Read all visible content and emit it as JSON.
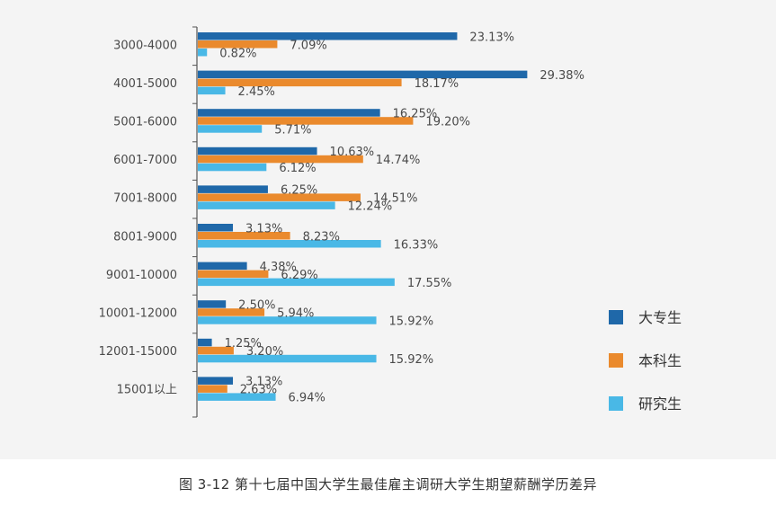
{
  "caption": "图 3-12 第十七届中国大学生最佳雇主调研大学生期望薪酬学历差异",
  "chart_data": {
    "type": "bar",
    "orientation": "horizontal",
    "title": "",
    "xlabel": "",
    "ylabel": "",
    "xlim": [
      0,
      32
    ],
    "grid": false,
    "legend_position": "right",
    "categories": [
      "3000-4000",
      "4001-5000",
      "5001-6000",
      "6001-7000",
      "7001-8000",
      "8001-9000",
      "9001-10000",
      "10001-12000",
      "12001-15000",
      "15001以上"
    ],
    "series": [
      {
        "name": "大专生",
        "color": "#1f68a9",
        "values": [
          23.13,
          29.38,
          16.25,
          10.63,
          6.25,
          3.13,
          4.38,
          2.5,
          1.25,
          3.13
        ],
        "labels": [
          "23.13%",
          "29.38%",
          "16.25%",
          "10.63%",
          "6.25%",
          "3.13%",
          "4.38%",
          "2.50%",
          "1.25%",
          "3.13%"
        ]
      },
      {
        "name": "本科生",
        "color": "#ea8a2d",
        "values": [
          7.09,
          18.17,
          19.2,
          14.74,
          14.51,
          8.23,
          6.29,
          5.94,
          3.2,
          2.63
        ],
        "labels": [
          "7.09%",
          "18.17%",
          "19.20%",
          "14.74%",
          "14.51%",
          "8.23%",
          "6.29%",
          "5.94%",
          "3.20%",
          "2.63%"
        ]
      },
      {
        "name": "研究生",
        "color": "#49b8e6",
        "values": [
          0.82,
          2.45,
          5.71,
          6.12,
          12.24,
          16.33,
          17.55,
          15.92,
          15.92,
          6.94
        ],
        "labels": [
          "0.82%",
          "2.45%",
          "5.71%",
          "6.12%",
          "12.24%",
          "16.33%",
          "17.55%",
          "15.92%",
          "15.92%",
          "6.94%"
        ]
      }
    ]
  }
}
